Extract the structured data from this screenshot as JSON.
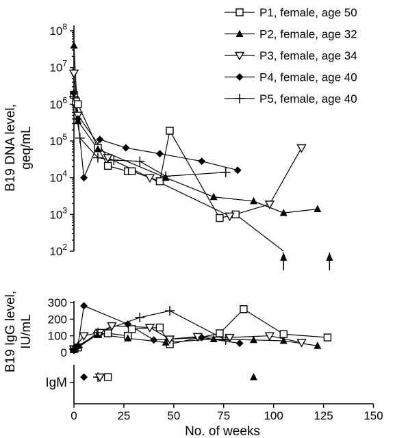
{
  "chart_data": [
    {
      "type": "line",
      "panel": "dna",
      "ylabel_lines": [
        "B19 DNA level,",
        "geq/mL"
      ],
      "yscale": "log",
      "ylim": [
        100,
        100000000
      ],
      "y_ticks": [
        {
          "value": 100,
          "base": "10",
          "exp": "2"
        },
        {
          "value": 1000,
          "base": "10",
          "exp": "3"
        },
        {
          "value": 10000,
          "base": "10",
          "exp": "4"
        },
        {
          "value": 100000,
          "base": "10",
          "exp": "5"
        },
        {
          "value": 1000000,
          "base": "10",
          "exp": "6"
        },
        {
          "value": 10000000,
          "base": "10",
          "exp": "7"
        },
        {
          "value": 100000000,
          "base": "10",
          "exp": "8"
        }
      ],
      "xlim": [
        0,
        150
      ],
      "legend_position": "top-right",
      "series": [
        {
          "name": "P1, female, age 50",
          "marker": "open-square",
          "x": [
            0,
            1,
            2,
            12,
            17,
            27,
            29,
            43,
            48,
            73,
            81,
            105
          ],
          "y": [
            1800000,
            1200000,
            1000000,
            65000,
            21000,
            15000,
            15000,
            8000,
            190000,
            800,
            1000,
            100
          ]
        },
        {
          "name": "P2, female, age 32",
          "marker": "filled-triangle",
          "x": [
            0,
            2,
            12,
            46,
            70,
            90,
            105,
            122
          ],
          "y": [
            40000000,
            350000,
            60000,
            10000,
            3000,
            2300,
            1100,
            1400
          ]
        },
        {
          "name": "P3, female, age 34",
          "marker": "open-triangle-down",
          "x": [
            0,
            2,
            17,
            38,
            78,
            98,
            114
          ],
          "y": [
            7000000,
            500000,
            35000,
            10000,
            900,
            1900,
            65000
          ]
        },
        {
          "name": "P4, female, age 40",
          "marker": "filled-diamond",
          "x": [
            0,
            2,
            5,
            13,
            26,
            43,
            64,
            82
          ],
          "y": [
            2000000,
            400000,
            10000,
            110000,
            65000,
            45000,
            28000,
            16000
          ]
        },
        {
          "name": "P5, female, age 40",
          "marker": "plus",
          "x": [
            0,
            3,
            12,
            20,
            33,
            46,
            76
          ],
          "y": [
            1600000,
            120000,
            35000,
            30000,
            28000,
            11000,
            14000
          ]
        }
      ],
      "arrows_below_axis_x": [
        105,
        128
      ]
    },
    {
      "type": "line",
      "panel": "igg",
      "ylabel_lines": [
        "B19 IgG level,",
        "IU/mL"
      ],
      "ylim": [
        0,
        300
      ],
      "y_ticks": [
        "0",
        "100",
        "200",
        "300"
      ],
      "series": [
        {
          "name": "P1, female, age 50",
          "marker": "open-square",
          "x": [
            0,
            2,
            12,
            17,
            27,
            29,
            43,
            48,
            73,
            85,
            105,
            127
          ],
          "y": [
            20,
            30,
            110,
            115,
            100,
            140,
            150,
            50,
            115,
            260,
            110,
            90
          ]
        },
        {
          "name": "P2, female, age 32",
          "marker": "filled-triangle",
          "x": [
            0,
            2,
            12,
            27,
            46,
            70,
            90,
            105,
            122
          ],
          "y": [
            20,
            40,
            110,
            85,
            60,
            80,
            75,
            70,
            40
          ]
        },
        {
          "name": "P3, female, age 34",
          "marker": "open-triangle-down",
          "x": [
            0,
            5,
            13,
            19,
            38,
            48,
            62,
            78,
            98,
            114
          ],
          "y": [
            20,
            100,
            120,
            160,
            150,
            80,
            95,
            90,
            100,
            60
          ]
        },
        {
          "name": "P4, female, age 40",
          "marker": "filled-diamond",
          "x": [
            0,
            2,
            5,
            27,
            40,
            64,
            83
          ],
          "y": [
            20,
            40,
            280,
            170,
            75,
            90,
            55
          ]
        },
        {
          "name": "P5, female, age 40",
          "marker": "plus",
          "x": [
            0,
            2,
            12,
            33,
            48,
            76
          ],
          "y": [
            20,
            30,
            120,
            210,
            250,
            75
          ]
        }
      ]
    },
    {
      "type": "scatter",
      "panel": "igm",
      "ylabel": "IgM",
      "xlabel": "No. of weeks",
      "xlim": [
        0,
        150
      ],
      "x_ticks": [
        "0",
        "25",
        "50",
        "75",
        "100",
        "125",
        "150"
      ],
      "points": [
        {
          "series": "P4, female, age 40",
          "marker": "filled-diamond",
          "x": 5
        },
        {
          "series": "P5, female, age 40",
          "marker": "plus",
          "x": 12
        },
        {
          "series": "P3, female, age 34",
          "marker": "open-triangle-down",
          "x": 13
        },
        {
          "series": "P1, female, age 50",
          "marker": "open-square",
          "x": 17
        },
        {
          "series": "P2, female, age 32",
          "marker": "filled-triangle",
          "x": 90
        }
      ]
    }
  ]
}
